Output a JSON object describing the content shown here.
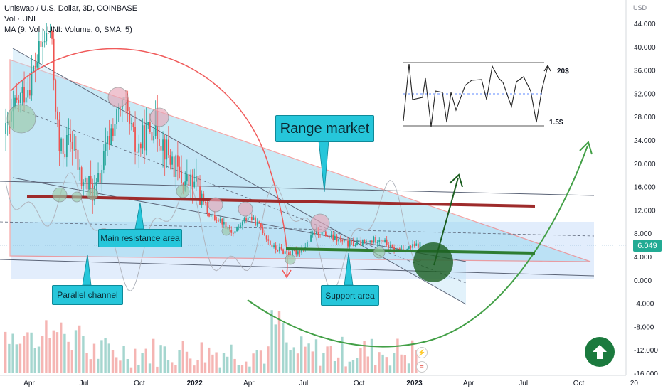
{
  "header": {
    "symbol_line": "Uniswap / U.S. Dollar, 3D, COINBASE",
    "vol_line": "Vol · UNI",
    "ma_line": "MA (9, Vol · UNI: Volume, 0, SMA, 5)"
  },
  "chart_data": {
    "type": "candlestick",
    "title": "Uniswap / U.S. Dollar, 3D, COINBASE",
    "y_axis_unit": "USD",
    "y_ticks": [
      "44.000",
      "40.000",
      "36.000",
      "32.000",
      "28.000",
      "24.000",
      "20.000",
      "16.000",
      "12.000",
      "8.000",
      "4.000",
      "0.000",
      "-4.000",
      "-8.000",
      "-12.000",
      "-16.000"
    ],
    "y_tick_values": [
      44,
      40,
      36,
      32,
      28,
      24,
      20,
      16,
      12,
      8,
      4,
      0,
      -4,
      -8,
      -12,
      -16
    ],
    "ylim": [
      -16,
      46
    ],
    "x_ticks": [
      "Apr",
      "Jul",
      "Oct",
      "2022",
      "Apr",
      "Jul",
      "Oct",
      "2023",
      "Apr",
      "Jul",
      "Oct",
      "20"
    ],
    "x_tick_dates": [
      "2021-04-01",
      "2021-07-01",
      "2021-10-01",
      "2022-01-01",
      "2022-04-01",
      "2022-07-01",
      "2022-10-01",
      "2023-01-01",
      "2023-04-01",
      "2023-07-01",
      "2023-10-01",
      "2024-01-01"
    ],
    "last_price": "6.049",
    "price_path": [
      {
        "date": "2021-02-20",
        "price": 25
      },
      {
        "date": "2021-03-10",
        "price": 30
      },
      {
        "date": "2021-04-01",
        "price": 34
      },
      {
        "date": "2021-04-20",
        "price": 40
      },
      {
        "date": "2021-05-05",
        "price": 43
      },
      {
        "date": "2021-05-20",
        "price": 22
      },
      {
        "date": "2021-06-10",
        "price": 24
      },
      {
        "date": "2021-06-25",
        "price": 17
      },
      {
        "date": "2021-07-20",
        "price": 15
      },
      {
        "date": "2021-08-15",
        "price": 26
      },
      {
        "date": "2021-09-05",
        "price": 30
      },
      {
        "date": "2021-09-25",
        "price": 22
      },
      {
        "date": "2021-10-10",
        "price": 25
      },
      {
        "date": "2021-10-25",
        "price": 27
      },
      {
        "date": "2021-11-15",
        "price": 22
      },
      {
        "date": "2021-12-10",
        "price": 17
      },
      {
        "date": "2022-01-05",
        "price": 16
      },
      {
        "date": "2022-01-25",
        "price": 11
      },
      {
        "date": "2022-02-15",
        "price": 10
      },
      {
        "date": "2022-03-05",
        "price": 8
      },
      {
        "date": "2022-03-30",
        "price": 11
      },
      {
        "date": "2022-04-20",
        "price": 9
      },
      {
        "date": "2022-05-10",
        "price": 5.5
      },
      {
        "date": "2022-06-10",
        "price": 4.5
      },
      {
        "date": "2022-07-01",
        "price": 5.5
      },
      {
        "date": "2022-07-20",
        "price": 8.5
      },
      {
        "date": "2022-08-10",
        "price": 7.5
      },
      {
        "date": "2022-09-10",
        "price": 6.2
      },
      {
        "date": "2022-10-10",
        "price": 6.3
      },
      {
        "date": "2022-11-05",
        "price": 7.2
      },
      {
        "date": "2022-11-25",
        "price": 5.2
      },
      {
        "date": "2022-12-20",
        "price": 5.4
      },
      {
        "date": "2023-01-10",
        "price": 6.049
      }
    ],
    "annotations": [
      {
        "type": "callout",
        "text": "Range market"
      },
      {
        "type": "callout",
        "text": "Main resistance area"
      },
      {
        "type": "callout",
        "text": "Parallel channel"
      },
      {
        "type": "callout",
        "text": "Support area"
      },
      {
        "type": "label",
        "text": "20$"
      },
      {
        "type": "label",
        "text": "1.5$"
      }
    ],
    "grid": false
  },
  "callouts": {
    "range_market": "Range market",
    "main_resistance": "Main resistance area",
    "parallel_channel": "Parallel channel",
    "support_area": "Support area"
  },
  "inset_labels": {
    "top": "20$",
    "bottom": "1.5$"
  },
  "price_badge": "6.049",
  "colors": {
    "up": "#26a69a",
    "down": "#ef5350",
    "channel_fill": "#9dd9f0",
    "resistance": "#9e2b2b",
    "support": "#2e7d32",
    "arc_red": "#f05a5a",
    "arc_green": "#43a047"
  }
}
